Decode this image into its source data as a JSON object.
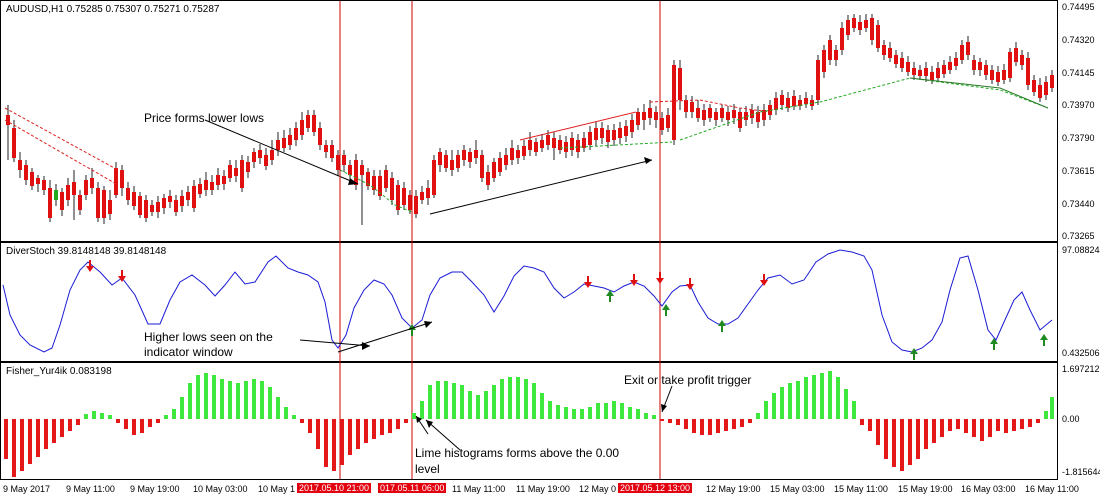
{
  "main_chart": {
    "header": "AUDUSD,H1  0.75285 0.75307 0.75271 0.75287",
    "y_ticks": [
      "0.74495",
      "0.74320",
      "0.74145",
      "0.73970",
      "0.73790",
      "0.73615",
      "0.73440",
      "0.73265"
    ]
  },
  "indicator1": {
    "header": "DiverStoch 39.8148148 39.8148148",
    "y_ticks": [
      "97.088244",
      "0.432506"
    ]
  },
  "indicator2": {
    "header": "Fisher_Yur4ik 0.083198",
    "y_ticks": [
      "1.697212",
      "0.00",
      "-1.815644"
    ]
  },
  "x_axis": {
    "labels": [
      "9 May 2017",
      "9 May 11:00",
      "9 May 19:00",
      "10 May 03:00",
      "10 May 1",
      "11 May 11:00",
      "11 May 19:00",
      "12 May 0",
      "12 May 19:00",
      "15 May 03:00",
      "15 May 11:00",
      "15 May 19:00",
      "16 May 03:00",
      "16 May 11:00"
    ],
    "highlighted": [
      "2017.05.10 21:00",
      "017.05.11 06:00",
      "2017.05.12 13:00"
    ]
  },
  "annotations": {
    "lower_lows": "Price forms lower lows",
    "higher_lows_1": "Higher lows seen on the",
    "higher_lows_2": "indicator window",
    "exit_trigger": "Exit or take profit trigger",
    "lime_hist_1": "Lime histograms forms above the 0.00",
    "lime_hist_2": "level"
  },
  "colors": {
    "bull": "#22aa22",
    "bear": "#e01010",
    "stoch_line": "#1a1ad6",
    "hist_pos": "#3ee83e",
    "hist_neg": "#e31818",
    "vline": "#d00000"
  }
}
